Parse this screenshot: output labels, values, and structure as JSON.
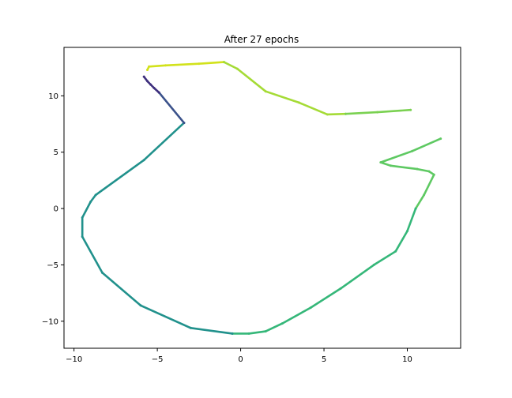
{
  "chart_data": {
    "type": "scatter",
    "title": "After 27 epochs",
    "xlabel": "",
    "ylabel": "",
    "xlim": [
      -10.6,
      13.2
    ],
    "ylim": [
      -12.4,
      14.3
    ],
    "xticks": [
      -10,
      -5,
      0,
      5,
      10
    ],
    "xtick_labels": [
      "−10",
      "−5",
      "0",
      "5",
      "10"
    ],
    "yticks": [
      -10,
      -5,
      0,
      5,
      10
    ],
    "ytick_labels": [
      "−10",
      "−5",
      "0",
      "5",
      "10"
    ],
    "grid": false,
    "legend": "none",
    "colormap": "viridis",
    "series": [
      {
        "color": "#d2e21b",
        "points": [
          [
            -5.6,
            12.3
          ],
          [
            -5.5,
            12.6
          ],
          [
            -4.5,
            12.7
          ],
          [
            -2.5,
            12.85
          ],
          [
            -1.0,
            13.0
          ]
        ]
      },
      {
        "color": "#a5db36",
        "points": [
          [
            -1.0,
            13.0
          ],
          [
            -0.2,
            12.4
          ],
          [
            1.5,
            10.4
          ],
          [
            3.5,
            9.4
          ],
          [
            5.2,
            8.35
          ],
          [
            6.3,
            8.4
          ]
        ]
      },
      {
        "color": "#7ad151",
        "points": [
          [
            6.3,
            8.4
          ],
          [
            8.2,
            8.55
          ],
          [
            10.2,
            8.75
          ]
        ]
      },
      {
        "color": "#5ec962",
        "points": [
          [
            12.0,
            6.2
          ],
          [
            10.3,
            5.1
          ],
          [
            8.4,
            4.1
          ],
          [
            9.0,
            3.8
          ],
          [
            10.6,
            3.5
          ],
          [
            11.3,
            3.3
          ],
          [
            11.6,
            3.0
          ],
          [
            11.0,
            1.2
          ],
          [
            10.5,
            0.0
          ]
        ]
      },
      {
        "color": "#35b779",
        "points": [
          [
            10.5,
            0.0
          ],
          [
            10.0,
            -2.0
          ],
          [
            9.3,
            -3.8
          ],
          [
            8.0,
            -5.0
          ],
          [
            6.0,
            -7.1
          ],
          [
            4.2,
            -8.8
          ],
          [
            2.5,
            -10.2
          ],
          [
            1.5,
            -10.9
          ],
          [
            0.5,
            -11.1
          ],
          [
            -0.5,
            -11.1
          ]
        ]
      },
      {
        "color": "#21918c",
        "points": [
          [
            -0.5,
            -11.1
          ],
          [
            -3.0,
            -10.6
          ],
          [
            -6.0,
            -8.6
          ],
          [
            -8.3,
            -5.7
          ],
          [
            -9.5,
            -2.5
          ],
          [
            -9.5,
            -0.8
          ],
          [
            -9.0,
            0.6
          ],
          [
            -8.7,
            1.2
          ],
          [
            -5.8,
            4.3
          ],
          [
            -3.4,
            7.6
          ]
        ]
      },
      {
        "color": "#3b528b",
        "points": [
          [
            -3.4,
            7.6
          ],
          [
            -4.9,
            10.3
          ]
        ]
      },
      {
        "color": "#3e2f7d",
        "points": [
          [
            -4.9,
            10.3
          ],
          [
            -5.2,
            10.7
          ],
          [
            -5.4,
            11.0
          ],
          [
            -5.6,
            11.3
          ],
          [
            -5.8,
            11.7
          ]
        ]
      }
    ]
  }
}
